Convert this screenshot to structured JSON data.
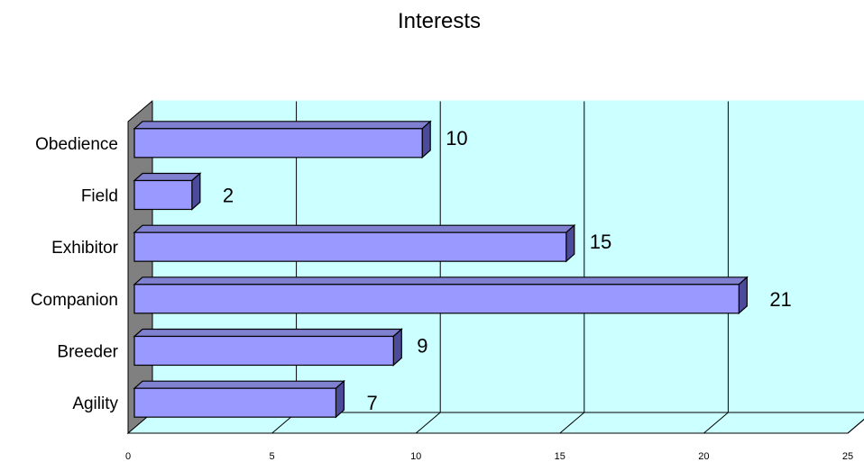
{
  "chart_data": {
    "type": "bar",
    "orientation": "horizontal",
    "three_d": true,
    "title": "Interests",
    "categories": [
      "Obedience",
      "Field",
      "Exhibitor",
      "Companion",
      "Breeder",
      "Agility"
    ],
    "values": [
      10,
      2,
      15,
      21,
      9,
      7
    ],
    "data_labels": [
      "10",
      "2",
      "15",
      "21",
      "9",
      "7"
    ],
    "xlim": [
      0,
      25
    ],
    "x_ticks": [
      "0",
      "5",
      "10",
      "15",
      "20",
      "25"
    ],
    "xlabel": "",
    "ylabel": "",
    "grid": "vertical",
    "legend": "none",
    "colors": {
      "plot_background": "#ccffff",
      "side_wall": "#808080",
      "bar_front": "#9999ff",
      "bar_top": "#8080d0",
      "bar_side": "#4b4b99",
      "outline": "#000000"
    }
  }
}
